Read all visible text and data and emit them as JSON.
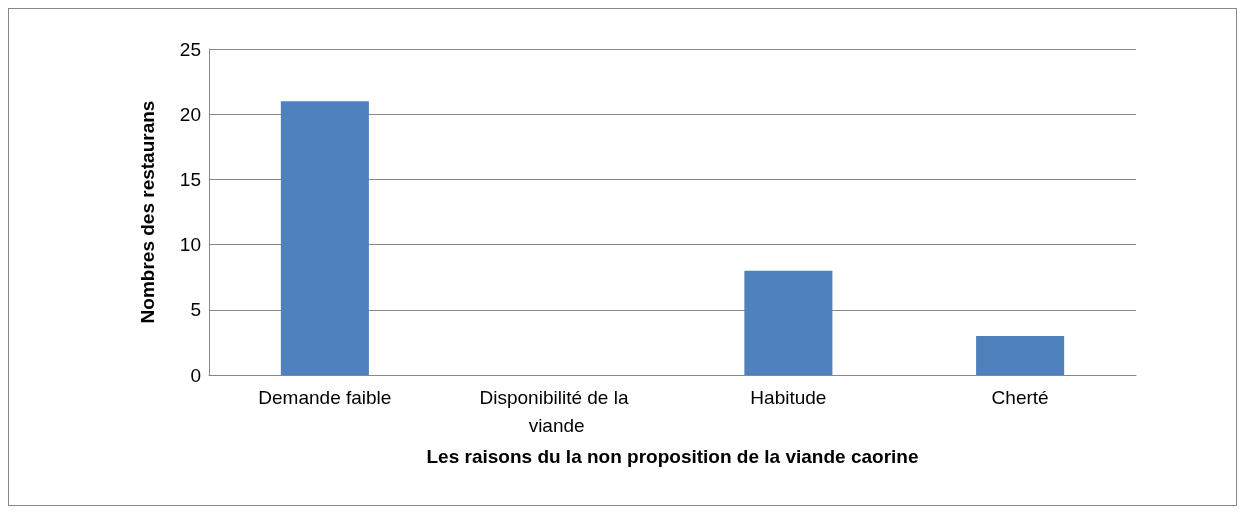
{
  "chart_data": {
    "type": "bar",
    "xlabel": "Les raisons du la non proposition de la viande caorine",
    "ylabel": "Nombres des restaurans",
    "categories": [
      "Demande faible",
      "Disponibilité de la viande",
      "Habitude",
      "Cherté"
    ],
    "values": [
      21,
      0,
      8,
      3
    ],
    "color": "#4f81bd",
    "ylim": [
      0,
      25
    ],
    "yticks": [
      0,
      5,
      10,
      15,
      20,
      25
    ],
    "grid": "y"
  }
}
